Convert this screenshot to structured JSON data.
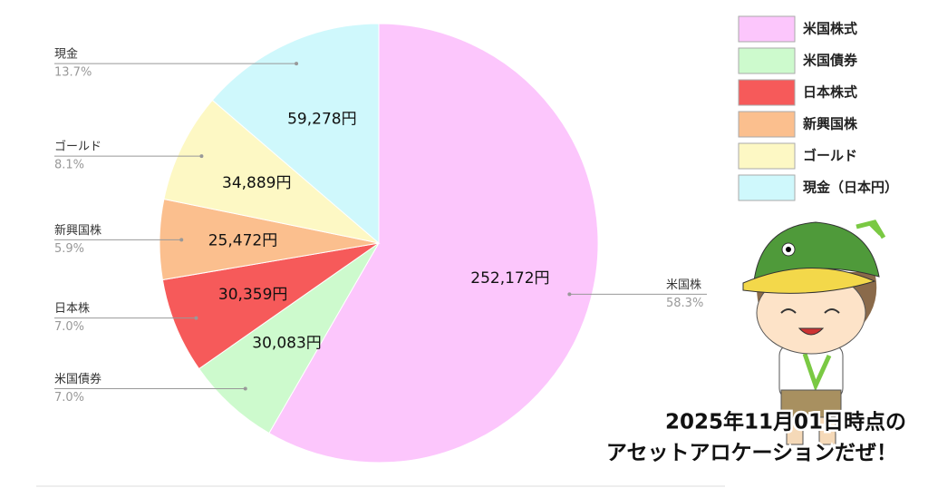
{
  "chart_data": {
    "type": "pie",
    "categories": [
      "米国株式",
      "米国債券",
      "日本株式",
      "新興国株",
      "ゴールド",
      "現金（日本円）"
    ],
    "callout_labels": [
      "米国株",
      "米国債券",
      "日本株",
      "新興国株",
      "ゴールド",
      "現金"
    ],
    "values": [
      252172,
      30083,
      30359,
      25472,
      34889,
      59278
    ],
    "value_labels": [
      "252,172円",
      "30,083円",
      "30,359円",
      "25,472円",
      "34,889円",
      "59,278円"
    ],
    "percentages": [
      58.3,
      7.0,
      7.0,
      5.9,
      8.1,
      13.7
    ],
    "percentage_labels": [
      "58.3%",
      "7.0%",
      "7.0%",
      "5.9%",
      "8.1%",
      "13.7%"
    ],
    "colors": [
      "#fcc6fc",
      "#cdfacd",
      "#f65a5a",
      "#fbbf8e",
      "#fdf8c4",
      "#cff8fc"
    ],
    "annotation": [
      "2025年11月01日時点の",
      "アセットアロケーションだぜ！"
    ]
  }
}
